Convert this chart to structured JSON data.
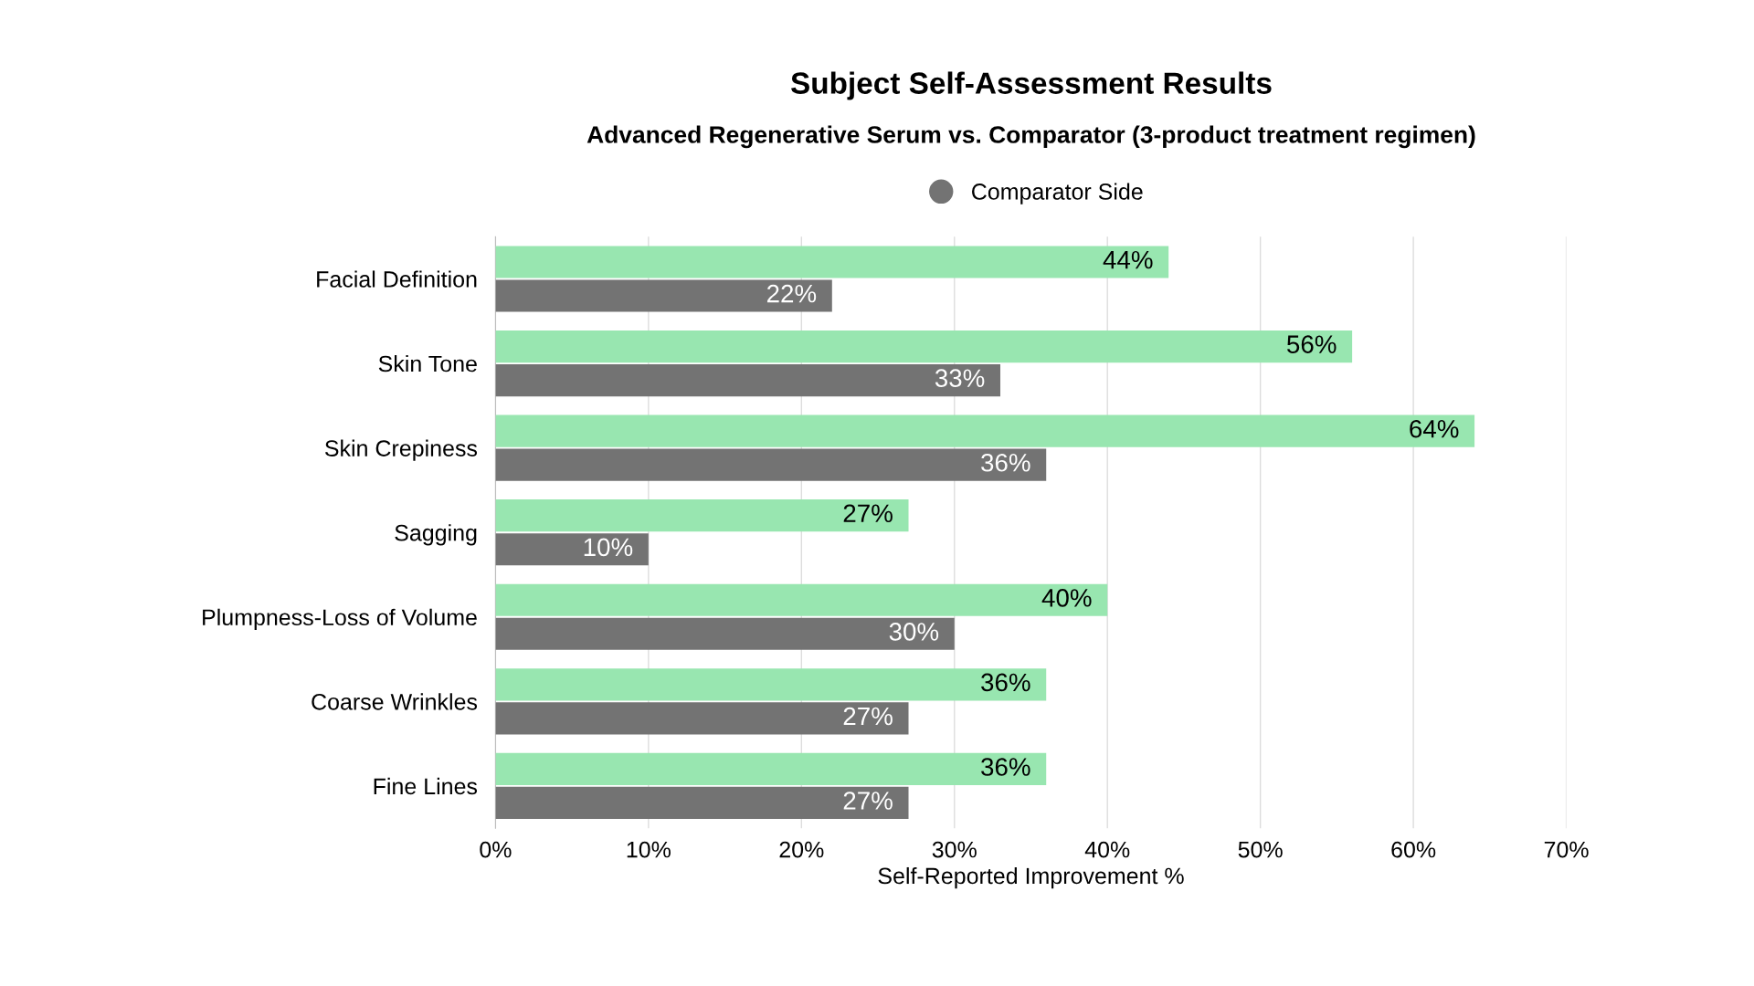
{
  "chart_data": {
    "type": "bar",
    "orientation": "horizontal",
    "title": "Subject Self-Assessment Results",
    "subtitle": "Advanced Regenerative Serum vs. Comparator (3-product treatment regimen)",
    "xlabel": "Self-Reported Improvement %",
    "categories": [
      "Facial Definition",
      "Skin Tone",
      "Skin Crepiness",
      "Sagging",
      "Plumpness-Loss of Volume",
      "Coarse Wrinkles",
      "Fine Lines"
    ],
    "series": [
      {
        "color": "#98e6b0",
        "values": [
          44,
          56,
          64,
          27,
          40,
          36,
          36
        ],
        "value_labels": [
          "44%",
          "56%",
          "64%",
          "27%",
          "40%",
          "36%",
          "36%"
        ]
      },
      {
        "name": "Comparator Side",
        "color": "#737373",
        "values": [
          22,
          33,
          36,
          10,
          30,
          27,
          27
        ],
        "value_labels": [
          "22%",
          "33%",
          "36%",
          "10%",
          "30%",
          "27%",
          "27%"
        ]
      }
    ],
    "xlim": [
      0,
      70
    ],
    "xticks": [
      {
        "value": 0,
        "label": "0%"
      },
      {
        "value": 10,
        "label": "10%"
      },
      {
        "value": 20,
        "label": "20%"
      },
      {
        "value": 30,
        "label": "30%"
      },
      {
        "value": 40,
        "label": "40%"
      },
      {
        "value": 50,
        "label": "50%"
      },
      {
        "value": 60,
        "label": "60%"
      },
      {
        "value": 70,
        "label": "70%"
      }
    ],
    "grid": "x",
    "legend": "top"
  }
}
